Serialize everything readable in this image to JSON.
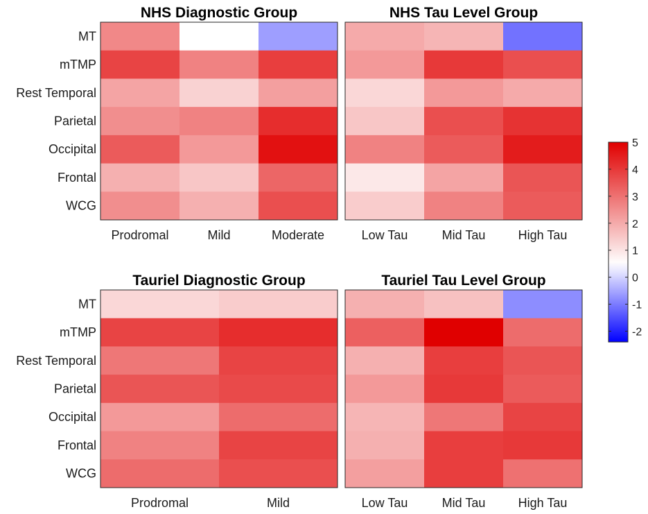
{
  "chart_data": [
    {
      "type": "heatmap",
      "title": "NHS Diagnostic Group",
      "rows": [
        "MT",
        "mTMP",
        "Rest Temporal",
        "Parietal",
        "Occipital",
        "Frontal",
        "WCG"
      ],
      "columns": [
        "Prodromal",
        "Mild",
        "Moderate"
      ],
      "values": [
        [
          2.6,
          0.5,
          -0.6
        ],
        [
          3.8,
          2.7,
          3.9
        ],
        [
          2.1,
          1.3,
          2.2
        ],
        [
          2.5,
          2.7,
          4.2
        ],
        [
          3.4,
          2.3,
          4.7
        ],
        [
          1.9,
          1.5,
          3.2
        ],
        [
          2.5,
          1.9,
          3.6
        ]
      ]
    },
    {
      "type": "heatmap",
      "title": "NHS Tau Level Group",
      "rows": [
        "MT",
        "mTMP",
        "Rest Temporal",
        "Parietal",
        "Occipital",
        "Frontal",
        "WCG"
      ],
      "columns": [
        "Low Tau",
        "Mid Tau",
        "High Tau"
      ],
      "values": [
        [
          2.0,
          1.8,
          -1.1
        ],
        [
          2.3,
          4.0,
          3.6
        ],
        [
          1.2,
          2.3,
          2.0
        ],
        [
          1.5,
          3.6,
          4.1
        ],
        [
          2.7,
          3.4,
          4.5
        ],
        [
          0.9,
          2.1,
          3.5
        ],
        [
          1.4,
          2.7,
          3.4
        ]
      ]
    },
    {
      "type": "heatmap",
      "title": "Tauriel Diagnostic Group",
      "rows": [
        "MT",
        "mTMP",
        "Rest Temporal",
        "Parietal",
        "Occipital",
        "Frontal",
        "WCG"
      ],
      "columns": [
        "Prodromal",
        "Mild"
      ],
      "values": [
        [
          1.2,
          1.4
        ],
        [
          3.8,
          4.2
        ],
        [
          2.9,
          3.8
        ],
        [
          3.5,
          3.7
        ],
        [
          2.3,
          3.1
        ],
        [
          2.7,
          3.8
        ],
        [
          3.1,
          3.6
        ]
      ]
    },
    {
      "type": "heatmap",
      "title": "Tauriel Tau Level Group",
      "rows": [
        "MT",
        "mTMP",
        "Rest Temporal",
        "Parietal",
        "Occipital",
        "Frontal",
        "WCG"
      ],
      "columns": [
        "Low Tau",
        "Mid Tau",
        "High Tau"
      ],
      "values": [
        [
          1.9,
          1.6,
          -0.8
        ],
        [
          3.3,
          5.0,
          3.1
        ],
        [
          1.9,
          3.9,
          3.5
        ],
        [
          2.3,
          4.0,
          3.4
        ],
        [
          1.8,
          2.9,
          3.8
        ],
        [
          1.9,
          3.9,
          4.0
        ],
        [
          2.2,
          3.9,
          3.0
        ]
      ]
    }
  ],
  "colorbar": {
    "range": [
      -2.4,
      5
    ],
    "ticks": [
      "5",
      "4",
      "3",
      "2",
      "1",
      "0",
      "-1",
      "-2"
    ],
    "tick_values": [
      5,
      4,
      3,
      2,
      1,
      0,
      -1,
      -2
    ],
    "low_color": "#0000ff",
    "mid_color": "#ffffff",
    "high_color": "#e00000",
    "mid_value": 0.5
  }
}
